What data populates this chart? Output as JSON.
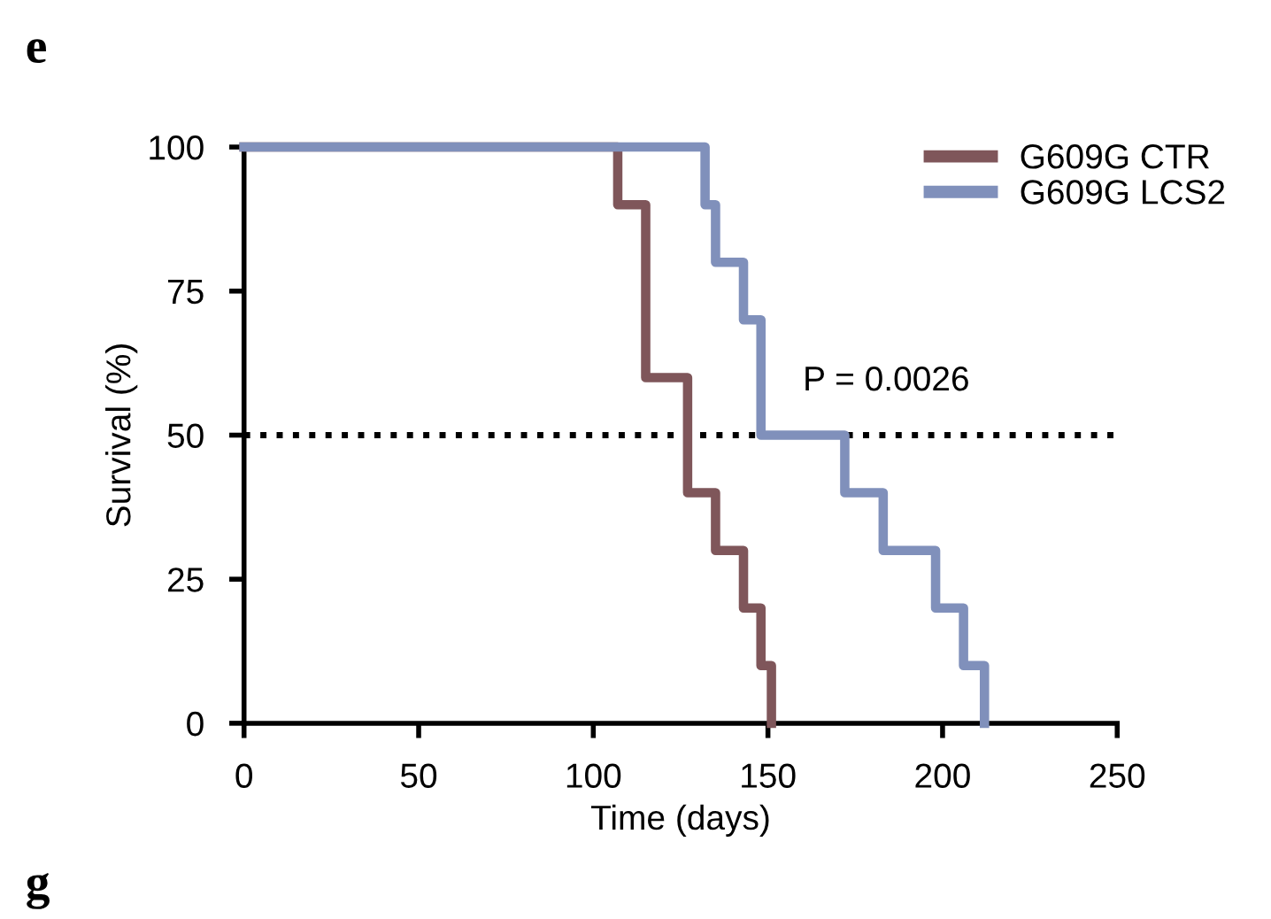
{
  "chart_data": {
    "type": "step",
    "xlabel": "Time (days)",
    "ylabel": "Survival (%)",
    "xlim": [
      0,
      250
    ],
    "xticks": [
      0,
      50,
      100,
      150,
      200,
      250
    ],
    "ylim": [
      0,
      100
    ],
    "yticks": [
      0,
      25,
      50,
      75,
      100
    ],
    "grid": false,
    "legend": "top right",
    "line_style": "solid",
    "marker": "none",
    "series": [
      {
        "name": "G609G CTR",
        "color": "#7f565a",
        "x": [
          0,
          107,
          115,
          127,
          135,
          143,
          148,
          151
        ],
        "values": [
          100,
          90,
          60,
          40,
          30,
          20,
          10,
          0
        ]
      },
      {
        "name": "G609G LCS2",
        "color": "#8090bb",
        "x": [
          0,
          132,
          135,
          143,
          148,
          172,
          183,
          198,
          206,
          212
        ],
        "values": [
          100,
          90,
          80,
          70,
          50,
          40,
          30,
          20,
          10,
          0
        ]
      }
    ],
    "ref_lines": [
      {
        "axis": "y",
        "value": 50,
        "label": null,
        "color": "#000000",
        "line_style": "dotted"
      }
    ],
    "annotations": [
      "e",
      "P = 0.0026",
      "g"
    ]
  }
}
